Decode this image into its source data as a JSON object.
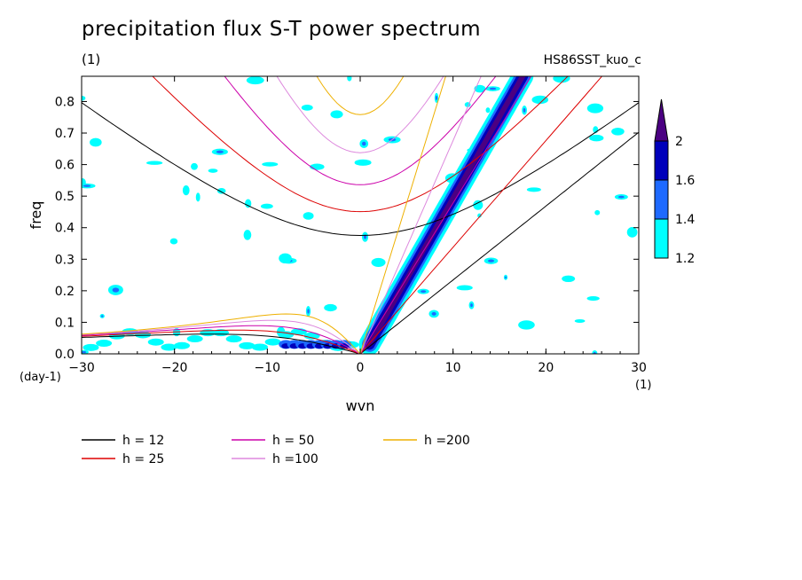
{
  "header": {
    "title": "precipitation flux S-T power spectrum",
    "subtitle": "(1)",
    "case_tag": "HS86SST_kuo_c"
  },
  "chart_data": {
    "type": "heatmap",
    "xlabel": "wvn",
    "ylabel": "freq",
    "x_unit": "(1)",
    "y_unit": "(day-1)",
    "xlim": [
      -30,
      30
    ],
    "ylim": [
      0,
      0.88
    ],
    "xticks": [
      -30,
      -20,
      -10,
      0,
      10,
      20,
      30
    ],
    "yticks": [
      0.0,
      0.1,
      0.2,
      0.3,
      0.4,
      0.5,
      0.6,
      0.7,
      0.8
    ],
    "colorbar": {
      "levels": [
        1.2,
        1.4,
        1.6,
        2
      ],
      "colors": [
        "#00ffff",
        "#1e6aff",
        "#0000bb",
        "#4b0082"
      ]
    },
    "dispersion_curves": [
      {
        "label": "h = 12",
        "h": 12,
        "color": "#000000"
      },
      {
        "label": "h = 25",
        "h": 25,
        "color": "#dd0000"
      },
      {
        "label": "h = 50",
        "h": 50,
        "color": "#cc00aa"
      },
      {
        "label": "h =100",
        "h": 100,
        "color": "#dd88dd"
      },
      {
        "label": "h =200",
        "h": 200,
        "color": "#eeb000"
      }
    ],
    "spectral_peak_band": {
      "wvn": [
        1,
        17.5
      ],
      "freq": [
        0.03,
        0.88
      ],
      "level": 2
    }
  }
}
